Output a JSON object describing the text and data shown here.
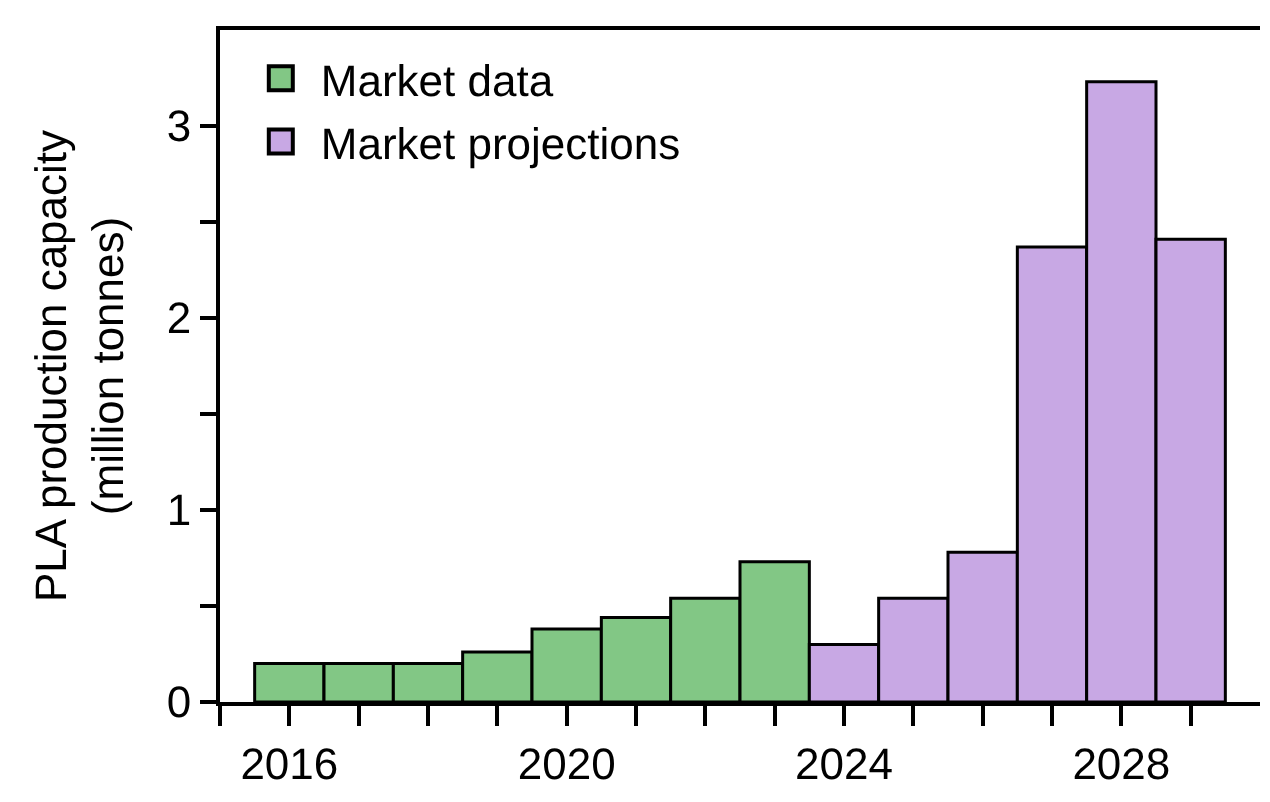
{
  "chart_data": {
    "type": "bar",
    "ylabel": "PLA production capacity\n(million tonnes)",
    "series": [
      {
        "name": "Market data",
        "color": "#82c785",
        "x": [
          2016,
          2017,
          2018,
          2019,
          2020,
          2021,
          2022,
          2023
        ],
        "values": [
          0.2,
          0.2,
          0.2,
          0.26,
          0.38,
          0.44,
          0.54,
          0.73
        ]
      },
      {
        "name": "Market projections",
        "color": "#c8a8e4",
        "x": [
          2024,
          2025,
          2026,
          2027,
          2028,
          2029
        ],
        "values": [
          0.3,
          0.54,
          0.78,
          2.37,
          3.23,
          2.41
        ]
      }
    ],
    "xlim": [
      2015,
      2030
    ],
    "xticks": [
      {
        "value": 2015,
        "label": null
      },
      2016,
      {
        "value": 2017,
        "label": null
      },
      {
        "value": 2018,
        "label": null
      },
      {
        "value": 2019,
        "label": null
      },
      2020,
      {
        "value": 2021,
        "label": null
      },
      {
        "value": 2022,
        "label": null
      },
      {
        "value": 2023,
        "label": null
      },
      2024,
      {
        "value": 2025,
        "label": null
      },
      {
        "value": 2026,
        "label": null
      },
      {
        "value": 2027,
        "label": null
      },
      2028,
      {
        "value": 2029,
        "label": null
      }
    ],
    "ylim": [
      0,
      3.5
    ],
    "yticks": [
      0,
      {
        "value": 0.5,
        "label": null
      },
      1,
      {
        "value": 1.5,
        "label": null
      },
      2,
      {
        "value": 2.5,
        "label": null
      },
      3
    ],
    "legend": "top left"
  }
}
